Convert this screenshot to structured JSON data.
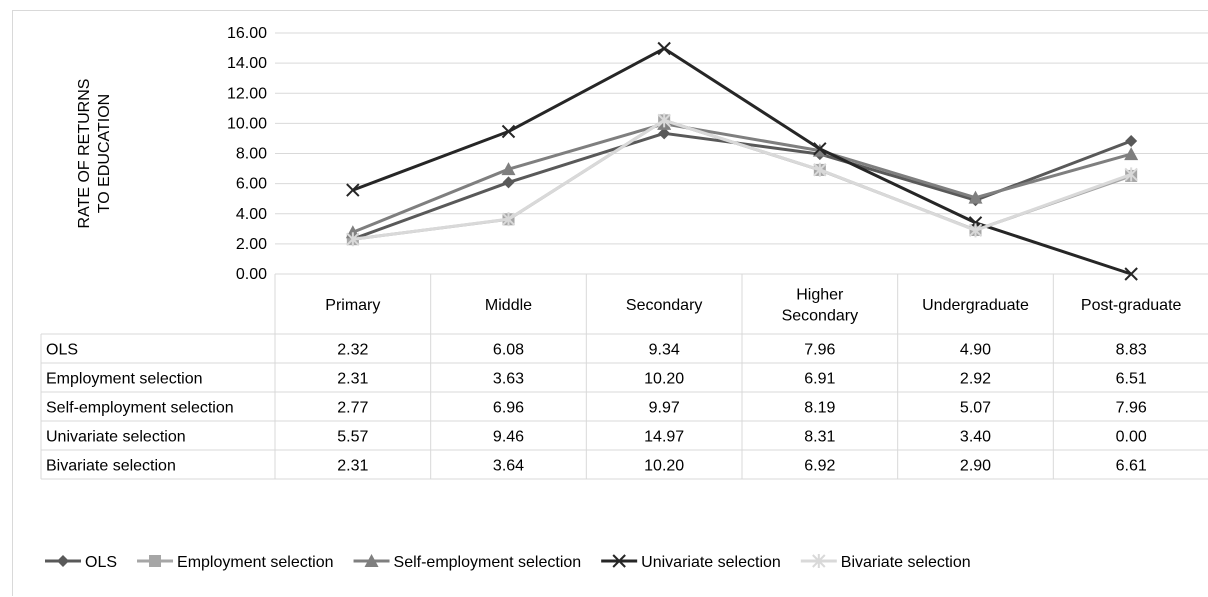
{
  "chart_data": {
    "type": "line",
    "title": "",
    "xlabel": "",
    "ylabel": "RATE OF RETURNS TO EDUCATION",
    "ylabel_lines": [
      "RATE OF RETURNS",
      "TO EDUCATION"
    ],
    "ylim": [
      0,
      16
    ],
    "yticks": [
      "0.00",
      "2.00",
      "4.00",
      "6.00",
      "8.00",
      "10.00",
      "12.00",
      "14.00",
      "16.00"
    ],
    "grid": true,
    "legend": "bottom",
    "data_table": true,
    "categories": [
      "Primary",
      "Middle",
      "Secondary",
      "Higher Secondary",
      "Undergraduate",
      "Post-graduate"
    ],
    "category_lines": [
      [
        "Primary"
      ],
      [
        "Middle"
      ],
      [
        "Secondary"
      ],
      [
        "Higher",
        "Secondary"
      ],
      [
        "Undergraduate"
      ],
      [
        "Post-graduate"
      ]
    ],
    "series": [
      {
        "name": "OLS",
        "marker": "diamond",
        "color": "#595959",
        "values": [
          2.32,
          6.08,
          9.34,
          7.96,
          4.9,
          8.83
        ],
        "labels": [
          "2.32",
          "6.08",
          "9.34",
          "7.96",
          "4.90",
          "8.83"
        ]
      },
      {
        "name": "Employment selection",
        "marker": "square",
        "color": "#a6a6a6",
        "values": [
          2.31,
          3.63,
          10.2,
          6.91,
          2.92,
          6.51
        ],
        "labels": [
          "2.31",
          "3.63",
          "10.20",
          "6.91",
          "2.92",
          "6.51"
        ]
      },
      {
        "name": "Self-employment selection",
        "marker": "triangle",
        "color": "#7f7f7f",
        "values": [
          2.77,
          6.96,
          9.97,
          8.19,
          5.07,
          7.96
        ],
        "labels": [
          "2.77",
          "6.96",
          "9.97",
          "8.19",
          "5.07",
          "7.96"
        ]
      },
      {
        "name": "Univariate selection",
        "marker": "x",
        "color": "#262626",
        "values": [
          5.57,
          9.46,
          14.97,
          8.31,
          3.4,
          0.0
        ],
        "labels": [
          "5.57",
          "9.46",
          "14.97",
          "8.31",
          "3.40",
          "0.00"
        ]
      },
      {
        "name": "Bivariate selection",
        "marker": "star",
        "color": "#d9d9d9",
        "values": [
          2.31,
          3.64,
          10.2,
          6.92,
          2.9,
          6.61
        ],
        "labels": [
          "2.31",
          "3.64",
          "10.20",
          "6.92",
          "2.90",
          "6.61"
        ]
      }
    ]
  }
}
